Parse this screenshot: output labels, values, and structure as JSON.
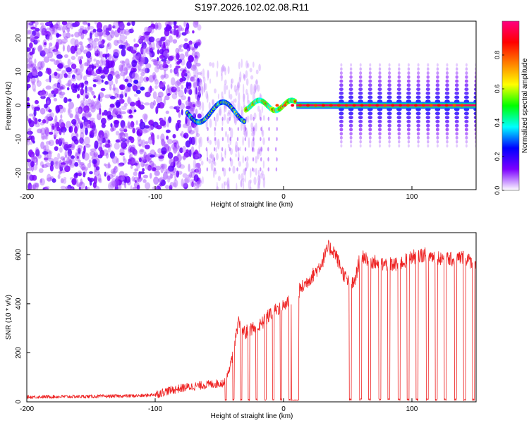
{
  "figure": {
    "title": "S197.2026.102.02.08.R11"
  },
  "chart_data": [
    {
      "type": "heatmap",
      "title": "S197.2026.102.02.08.R11",
      "xlabel": "Height of straight line (km)",
      "ylabel": "Frequency (Hz)",
      "xlim": [
        -200,
        150
      ],
      "ylim": [
        -25,
        25
      ],
      "xticks": [
        -200,
        -100,
        0,
        100
      ],
      "xtick_labels": [
        "-200",
        "-100",
        "0",
        "100"
      ],
      "yticks": [
        20,
        10,
        0,
        -10,
        -20
      ],
      "ytick_labels": [
        "20",
        "10",
        "0",
        "-10",
        "-20"
      ],
      "colorbar": {
        "label": "Normalized spectral amplitude",
        "range": [
          0,
          1
        ],
        "ticks": [
          0.0,
          0.2,
          0.4,
          0.6,
          0.8
        ],
        "tick_labels": [
          "0.0",
          "0.2",
          "0.4",
          "0.6",
          "0.8"
        ],
        "colors": [
          "#ffffff",
          "#7c00ff",
          "#0000ff",
          "#00ffff",
          "#00ff00",
          "#ffff00",
          "#ff8000",
          "#ff0000",
          "#ff0080"
        ]
      },
      "features": {
        "noise_region_km": [
          -200,
          -75
        ],
        "transition_region_km": [
          -75,
          -20
        ],
        "steady_line_km": [
          10,
          150
        ],
        "steady_line_freq_hz": 0,
        "harmonic_spacing_km": 7.5
      }
    },
    {
      "type": "line",
      "xlabel": "Height of straight line (km)",
      "ylabel": "SNR (10 * v/v)",
      "xlim": [
        -200,
        150
      ],
      "ylim": [
        0,
        690
      ],
      "xticks": [
        -200,
        -100,
        0,
        100
      ],
      "xtick_labels": [
        "-200",
        "-100",
        "0",
        "100"
      ],
      "yticks": [
        0,
        200,
        400,
        600
      ],
      "ytick_labels": [
        "0",
        "200",
        "400",
        "600"
      ],
      "series": [
        {
          "name": "SNR",
          "color": "#ee2222",
          "envelope_x": [
            -200,
            -150,
            -110,
            -100,
            -90,
            -75,
            -60,
            -50,
            -45,
            -40,
            -35,
            -30,
            -25,
            -20,
            -15,
            -10,
            -5,
            0,
            5,
            10,
            15,
            20,
            25,
            30,
            35,
            40,
            45,
            50,
            55,
            60,
            70,
            80,
            90,
            100,
            110,
            120,
            130,
            140,
            150
          ],
          "envelope_y": [
            20,
            22,
            25,
            30,
            45,
            60,
            70,
            75,
            80,
            180,
            320,
            280,
            300,
            300,
            330,
            360,
            380,
            390,
            420,
            440,
            470,
            500,
            530,
            570,
            630,
            610,
            540,
            490,
            480,
            600,
            570,
            560,
            560,
            590,
            600,
            590,
            580,
            590,
            560
          ],
          "dropout_centers_km": [
            -45,
            -39,
            -33,
            -27,
            -21,
            -14,
            -8,
            -2,
            5,
            52,
            60,
            67,
            75,
            82,
            90,
            97,
            104,
            112,
            119,
            126,
            134,
            141,
            148
          ],
          "dropout_value": 5
        }
      ]
    }
  ]
}
